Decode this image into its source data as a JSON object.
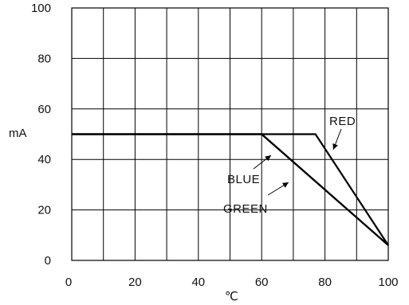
{
  "chart_data": {
    "type": "line",
    "title": "",
    "xlabel": "℃",
    "ylabel": "mA",
    "xlim": [
      0,
      100
    ],
    "ylim": [
      0,
      100
    ],
    "x_ticks": [
      0,
      20,
      40,
      60,
      80,
      100
    ],
    "y_ticks": [
      0,
      20,
      40,
      60,
      80,
      100
    ],
    "x_tick_labels": [
      "0",
      "20",
      "40",
      "60",
      "80",
      "100"
    ],
    "y_tick_labels": [
      "0",
      "20",
      "40",
      "60",
      "80",
      "100"
    ],
    "grid": true,
    "series": [
      {
        "name": "RED",
        "x": [
          0,
          77,
          100
        ],
        "y": [
          50,
          50,
          6
        ]
      },
      {
        "name": "BLUE",
        "x": [
          0,
          60,
          100
        ],
        "y": [
          50,
          50,
          6
        ]
      },
      {
        "name": "GREEN",
        "x": [
          0,
          60,
          100
        ],
        "y": [
          50,
          50,
          6
        ]
      }
    ]
  }
}
